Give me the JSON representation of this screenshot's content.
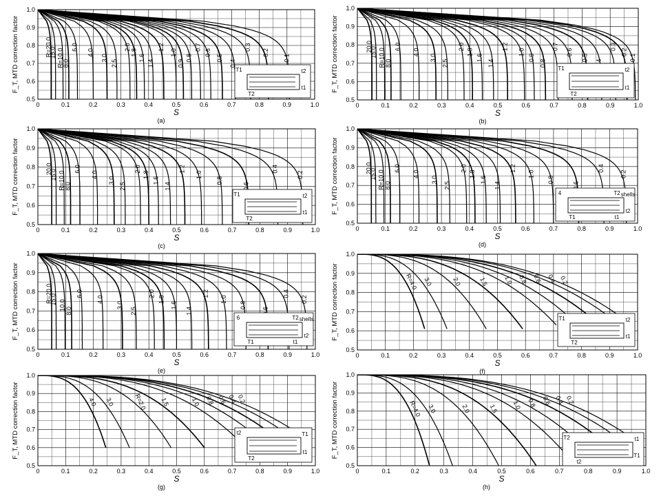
{
  "ylabel": "F_T, MTD correction factor",
  "xlabel": "S",
  "y_ticks": [
    "0.5",
    "0.6",
    "0.7",
    "0.8",
    "0.9",
    "1.0"
  ],
  "x_ticks": [
    "0",
    "0.1",
    "0.2",
    "0.3",
    "0.4",
    "0.5",
    "0.6",
    "0.7",
    "0.8",
    "0.9",
    "1.0"
  ],
  "chart_data": [
    {
      "type": "line",
      "panel": "(a)",
      "xlabel": "S",
      "ylabel": "F_T, MTD correction factor",
      "xlim": [
        0,
        1.0
      ],
      "ylim": [
        0.5,
        1.0
      ],
      "grid": true,
      "inset": [
        "T1",
        "t2",
        "T2",
        "t1"
      ],
      "series": [
        {
          "name": "R=20.0",
          "x_end": 0.048
        },
        {
          "name": "15.0",
          "x_end": 0.064
        },
        {
          "name": "R=10.0",
          "x_end": 0.091
        },
        {
          "name": "8.0",
          "x_end": 0.112
        },
        {
          "name": "6.0",
          "x_end": 0.143
        },
        {
          "name": "4.0",
          "x_end": 0.2
        },
        {
          "name": "3.0",
          "x_end": 0.25
        },
        {
          "name": "2.5",
          "x_end": 0.286
        },
        {
          "name": "2.0",
          "x_end": 0.333
        },
        {
          "name": "1.8",
          "x_end": 0.357
        },
        {
          "name": "1.6",
          "x_end": 0.385
        },
        {
          "name": "1.4",
          "x_end": 0.417
        },
        {
          "name": "1.2",
          "x_end": 0.455
        },
        {
          "name": "1.0",
          "x_end": 0.5
        },
        {
          "name": "0.8",
          "x_end": 0.556
        },
        {
          "name": "0.9",
          "x_end": 0.526
        },
        {
          "name": "0.7",
          "x_end": 0.588
        },
        {
          "name": "0.6",
          "x_end": 0.625
        },
        {
          "name": "0.5",
          "x_end": 0.667
        },
        {
          "name": "0.4",
          "x_end": 0.714
        },
        {
          "name": "0.3",
          "x_end": 0.769
        },
        {
          "name": "0.2",
          "x_end": 0.833
        },
        {
          "name": "0.1",
          "x_end": 0.909
        }
      ]
    },
    {
      "type": "line",
      "panel": "(b)",
      "xlabel": "S",
      "ylabel": "F_T, MTD correction factor",
      "xlim": [
        0,
        1.0
      ],
      "ylim": [
        0.5,
        1.0
      ],
      "grid": true,
      "inset": [
        "T1",
        "t2",
        "T2",
        "t1"
      ],
      "series": [
        {
          "name": "20.0",
          "x_end": 0.052
        },
        {
          "name": "15.0",
          "x_end": 0.068
        },
        {
          "name": "R=10.0",
          "x_end": 0.097
        },
        {
          "name": "8.0",
          "x_end": 0.12
        },
        {
          "name": "6.0",
          "x_end": 0.155
        },
        {
          "name": "4.0",
          "x_end": 0.22
        },
        {
          "name": "3.0",
          "x_end": 0.28
        },
        {
          "name": "2.5",
          "x_end": 0.322
        },
        {
          "name": "2.0",
          "x_end": 0.38
        },
        {
          "name": "1.8",
          "x_end": 0.41
        },
        {
          "name": "1.6",
          "x_end": 0.445
        },
        {
          "name": "1.4",
          "x_end": 0.485
        },
        {
          "name": "1.2",
          "x_end": 0.535
        },
        {
          "name": "1.0",
          "x_end": 0.595
        },
        {
          "name": "0.9",
          "x_end": 0.63
        },
        {
          "name": "0.8",
          "x_end": 0.67
        },
        {
          "name": "0.7",
          "x_end": 0.715
        },
        {
          "name": "0.6",
          "x_end": 0.765
        },
        {
          "name": "0.5",
          "x_end": 0.82
        },
        {
          "name": "0.4",
          "x_end": 0.87
        },
        {
          "name": "0.3",
          "x_end": 0.92
        },
        {
          "name": "0.2",
          "x_end": 0.96
        },
        {
          "name": "0.1",
          "x_end": 0.99
        }
      ]
    },
    {
      "type": "line",
      "panel": "(c)",
      "xlabel": "S",
      "ylabel": "F_T, MTD correction factor",
      "xlim": [
        0,
        1.0
      ],
      "ylim": [
        0.5,
        1.0
      ],
      "grid": true,
      "inset": [
        "T1",
        "t2",
        "T2",
        "t1"
      ],
      "series": [
        {
          "name": "20.0",
          "x_end": 0.05
        },
        {
          "name": "15.0",
          "x_end": 0.066
        },
        {
          "name": "R=10.0",
          "x_end": 0.095
        },
        {
          "name": "8.0",
          "x_end": 0.118
        },
        {
          "name": "6.0",
          "x_end": 0.152
        },
        {
          "name": "4.0",
          "x_end": 0.215
        },
        {
          "name": "3.0",
          "x_end": 0.275
        },
        {
          "name": "2.5",
          "x_end": 0.315
        },
        {
          "name": "2.0",
          "x_end": 0.37
        },
        {
          "name": "1.8",
          "x_end": 0.4
        },
        {
          "name": "1.6",
          "x_end": 0.435
        },
        {
          "name": "1.4",
          "x_end": 0.478
        },
        {
          "name": "1.2",
          "x_end": 0.53
        },
        {
          "name": "1.0",
          "x_end": 0.59
        },
        {
          "name": "0.8",
          "x_end": 0.665
        },
        {
          "name": "0.6",
          "x_end": 0.76
        },
        {
          "name": "0.4",
          "x_end": 0.865
        },
        {
          "name": "0.2",
          "x_end": 0.955
        }
      ]
    },
    {
      "type": "line",
      "panel": "(d)",
      "xlabel": "S",
      "ylabel": "F_T, MTD correction factor",
      "xlim": [
        0,
        1.0
      ],
      "ylim": [
        0.5,
        1.0
      ],
      "grid": true,
      "inset": [
        "4",
        "shells",
        "T1",
        "t2",
        "T2",
        "t1"
      ],
      "series": [
        {
          "name": "20.0",
          "x_end": 0.05
        },
        {
          "name": "15.0",
          "x_end": 0.066
        },
        {
          "name": "R=10.0",
          "x_end": 0.095
        },
        {
          "name": "8.0",
          "x_end": 0.118
        },
        {
          "name": "6.0",
          "x_end": 0.152
        },
        {
          "name": "4.0",
          "x_end": 0.22
        },
        {
          "name": "3.0",
          "x_end": 0.285
        },
        {
          "name": "2.5",
          "x_end": 0.33
        },
        {
          "name": "2.0",
          "x_end": 0.39
        },
        {
          "name": "1.8",
          "x_end": 0.42
        },
        {
          "name": "1.6",
          "x_end": 0.46
        },
        {
          "name": "1.4",
          "x_end": 0.51
        },
        {
          "name": "1.2",
          "x_end": 0.565
        },
        {
          "name": "1.0",
          "x_end": 0.63
        },
        {
          "name": "0.8",
          "x_end": 0.7
        },
        {
          "name": "0.6",
          "x_end": 0.79
        },
        {
          "name": "0.4",
          "x_end": 0.88
        },
        {
          "name": "0.2",
          "x_end": 0.96
        }
      ]
    },
    {
      "type": "line",
      "panel": "(e)",
      "xlabel": "S",
      "ylabel": "F_T, MTD correction factor",
      "xlim": [
        0,
        1.0
      ],
      "ylim": [
        0.5,
        1.0
      ],
      "grid": true,
      "inset": [
        "6",
        "shells",
        "T1",
        "t2",
        "T2",
        "t1"
      ],
      "series": [
        {
          "name": "R=20.0",
          "x_end": 0.05
        },
        {
          "name": "15.0",
          "x_end": 0.066
        },
        {
          "name": "10.0",
          "x_end": 0.098
        },
        {
          "name": "8.0",
          "x_end": 0.122
        },
        {
          "name": "6.0",
          "x_end": 0.16
        },
        {
          "name": "4.0",
          "x_end": 0.235
        },
        {
          "name": "3.0",
          "x_end": 0.305
        },
        {
          "name": "2.5",
          "x_end": 0.355
        },
        {
          "name": "2.0",
          "x_end": 0.42
        },
        {
          "name": "1.8",
          "x_end": 0.455
        },
        {
          "name": "1.6",
          "x_end": 0.5
        },
        {
          "name": "1.4",
          "x_end": 0.555
        },
        {
          "name": "1.2",
          "x_end": 0.615
        },
        {
          "name": "1.0",
          "x_end": 0.68
        },
        {
          "name": "0.8",
          "x_end": 0.75
        },
        {
          "name": "0.6",
          "x_end": 0.83
        },
        {
          "name": "0.4",
          "x_end": 0.905
        },
        {
          "name": "0.2",
          "x_end": 0.97
        }
      ]
    },
    {
      "type": "line",
      "panel": "(f)",
      "xlabel": "S",
      "ylabel": "F_T, MTD correction factor",
      "xlim": [
        0,
        1.0
      ],
      "ylim": [
        0.5,
        1.0
      ],
      "grid": true,
      "inset": [
        "T1",
        "t2",
        "T2",
        "t1"
      ],
      "series": [
        {
          "name": "R=4.0",
          "x_end": 0.24,
          "y_end": 0.61
        },
        {
          "name": "3.0",
          "x_end": 0.32,
          "y_end": 0.61
        },
        {
          "name": "2.0",
          "x_end": 0.46,
          "y_end": 0.61
        },
        {
          "name": "1.5",
          "x_end": 0.59,
          "y_end": 0.61
        },
        {
          "name": "1.0",
          "x_end": 0.71,
          "y_end": 0.63
        },
        {
          "name": "0.8",
          "x_end": 0.78,
          "y_end": 0.64
        },
        {
          "name": "0.6",
          "x_end": 0.85,
          "y_end": 0.65
        },
        {
          "name": "0.4",
          "x_end": 0.92,
          "y_end": 0.65
        },
        {
          "name": "0.2",
          "x_end": 0.98,
          "y_end": 0.63
        }
      ]
    },
    {
      "type": "line",
      "panel": "(g)",
      "xlabel": "S",
      "ylabel": "F_T, MTD correction factor",
      "xlim": [
        0,
        1.0
      ],
      "ylim": [
        0.5,
        1.0
      ],
      "grid": true,
      "inset": [
        "t2",
        "T1",
        "T2",
        "t1"
      ],
      "series": [
        {
          "name": "4.0",
          "x_end": 0.245,
          "y_end": 0.6
        },
        {
          "name": "3.0",
          "x_end": 0.33,
          "y_end": 0.6
        },
        {
          "name": "R=2.0",
          "x_end": 0.48,
          "y_end": 0.6
        },
        {
          "name": "1.5",
          "x_end": 0.6,
          "y_end": 0.6
        },
        {
          "name": "1.0",
          "x_end": 0.75,
          "y_end": 0.6
        },
        {
          "name": "0.8",
          "x_end": 0.82,
          "y_end": 0.62
        },
        {
          "name": "0.6",
          "x_end": 0.88,
          "y_end": 0.63
        },
        {
          "name": "0.4",
          "x_end": 0.93,
          "y_end": 0.64
        },
        {
          "name": "0.2",
          "x_end": 0.975,
          "y_end": 0.64
        }
      ]
    },
    {
      "type": "line",
      "panel": "(h)",
      "xlabel": "S",
      "ylabel": "F_T, MTD correction factor",
      "xlim": [
        0,
        1.0
      ],
      "ylim": [
        0.5,
        1.0
      ],
      "grid": true,
      "inset": [
        "T2",
        "t1",
        "t2",
        "T1"
      ],
      "series": [
        {
          "name": "R=4.0",
          "x_end": 0.25,
          "y_end": 0.5
        },
        {
          "name": "3.0",
          "x_end": 0.33,
          "y_end": 0.5
        },
        {
          "name": "2.0",
          "x_end": 0.49,
          "y_end": 0.5
        },
        {
          "name": "1.5",
          "x_end": 0.62,
          "y_end": 0.5
        },
        {
          "name": "1.0",
          "x_end": 0.73,
          "y_end": 0.55
        },
        {
          "name": "0.8",
          "x_end": 0.8,
          "y_end": 0.58
        },
        {
          "name": "0.6",
          "x_end": 0.87,
          "y_end": 0.61
        },
        {
          "name": "0.4",
          "x_end": 0.93,
          "y_end": 0.62
        },
        {
          "name": "0.2",
          "x_end": 0.98,
          "y_end": 0.62
        }
      ]
    }
  ]
}
